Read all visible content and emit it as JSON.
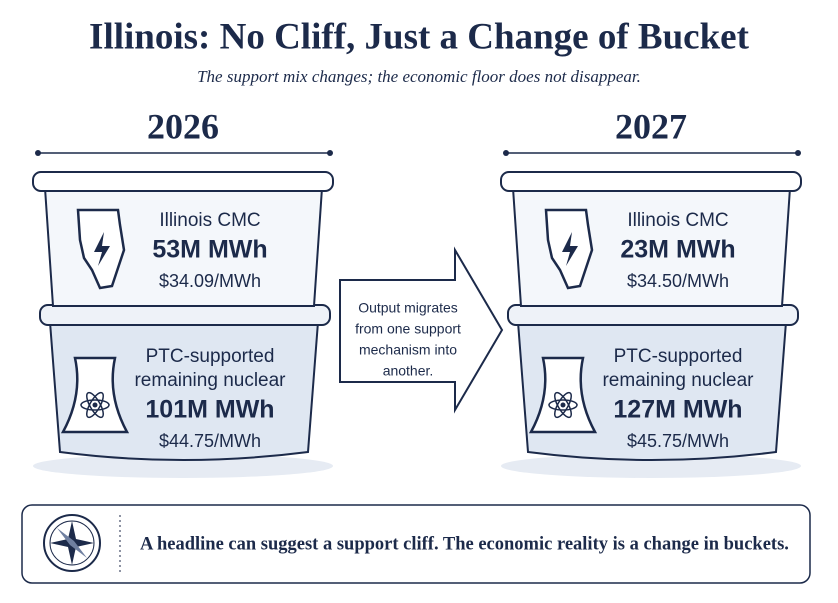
{
  "title": "Illinois: No Cliff, Just a Change of Bucket",
  "subtitle": "The support mix changes; the economic floor does not disappear.",
  "columns": [
    {
      "year": "2026",
      "buckets": [
        {
          "label": [
            "Illinois CMC"
          ],
          "volume": "53M MWh",
          "price": "$34.09/MWh"
        },
        {
          "label": [
            "PTC-supported",
            "remaining nuclear"
          ],
          "volume": "101M MWh",
          "price": "$44.75/MWh"
        }
      ]
    },
    {
      "year": "2027",
      "buckets": [
        {
          "label": [
            "Illinois CMC"
          ],
          "volume": "23M MWh",
          "price": "$34.50/MWh"
        },
        {
          "label": [
            "PTC-supported",
            "remaining nuclear"
          ],
          "volume": "127M MWh",
          "price": "$45.75/MWh"
        }
      ]
    }
  ],
  "arrow_text": [
    "Output migrates",
    "from one support",
    "mechanism into",
    "another."
  ],
  "footer": "A headline can suggest a support cliff. The economic reality is a change in buckets."
}
